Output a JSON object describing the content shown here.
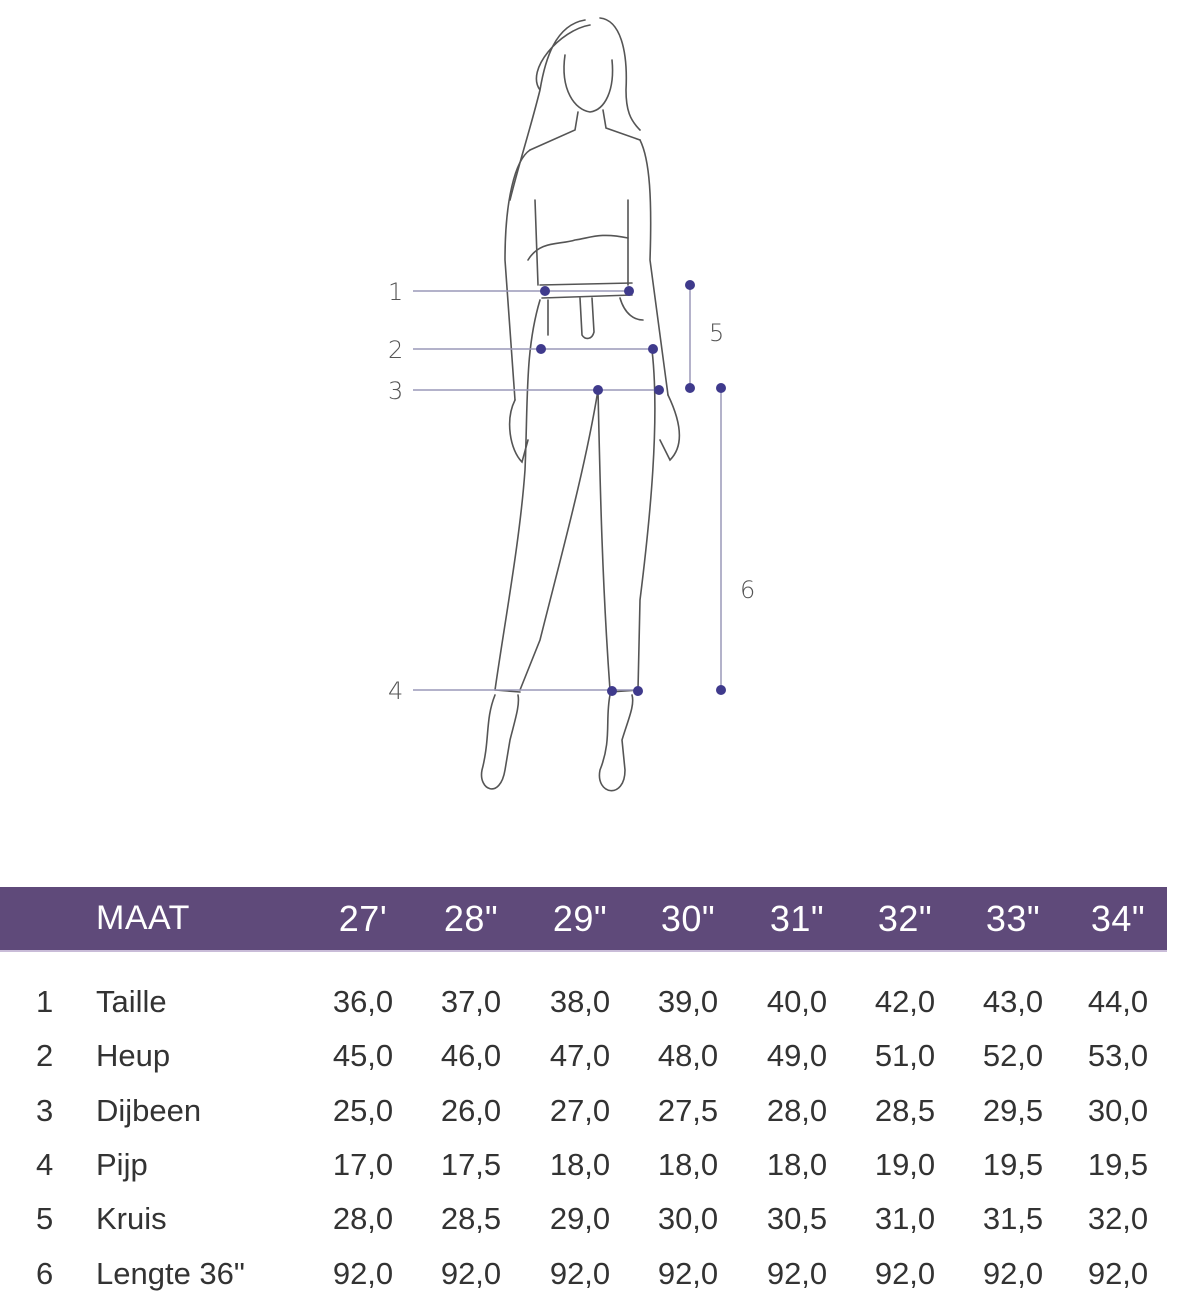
{
  "figure": {
    "measurement_labels": [
      "1",
      "2",
      "3",
      "4",
      "5",
      "6"
    ],
    "marker_color": "#3f3a8c"
  },
  "table": {
    "header_color": "#5f4a7a",
    "header_label": "MAAT",
    "sizes": [
      "27'",
      "28\"",
      "29\"",
      "30\"",
      "31\"",
      "32\"",
      "33\"",
      "34\""
    ],
    "rows": [
      {
        "num": "1",
        "label": "Taille",
        "values": [
          "36,0",
          "37,0",
          "38,0",
          "39,0",
          "40,0",
          "42,0",
          "43,0",
          "44,0"
        ]
      },
      {
        "num": "2",
        "label": "Heup",
        "values": [
          "45,0",
          "46,0",
          "47,0",
          "48,0",
          "49,0",
          "51,0",
          "52,0",
          "53,0"
        ]
      },
      {
        "num": "3",
        "label": "Dijbeen",
        "values": [
          "25,0",
          "26,0",
          "27,0",
          "27,5",
          "28,0",
          "28,5",
          "29,5",
          "30,0"
        ]
      },
      {
        "num": "4",
        "label": "Pijp",
        "values": [
          "17,0",
          "17,5",
          "18,0",
          "18,0",
          "18,0",
          "19,0",
          "19,5",
          "19,5"
        ]
      },
      {
        "num": "5",
        "label": "Kruis",
        "values": [
          "28,0",
          "28,5",
          "29,0",
          "30,0",
          "30,5",
          "31,0",
          "31,5",
          "32,0"
        ]
      },
      {
        "num": "6",
        "label": "Lengte 36\"",
        "values": [
          "92,0",
          "92,0",
          "92,0",
          "92,0",
          "92,0",
          "92,0",
          "92,0",
          "92,0"
        ]
      }
    ]
  }
}
